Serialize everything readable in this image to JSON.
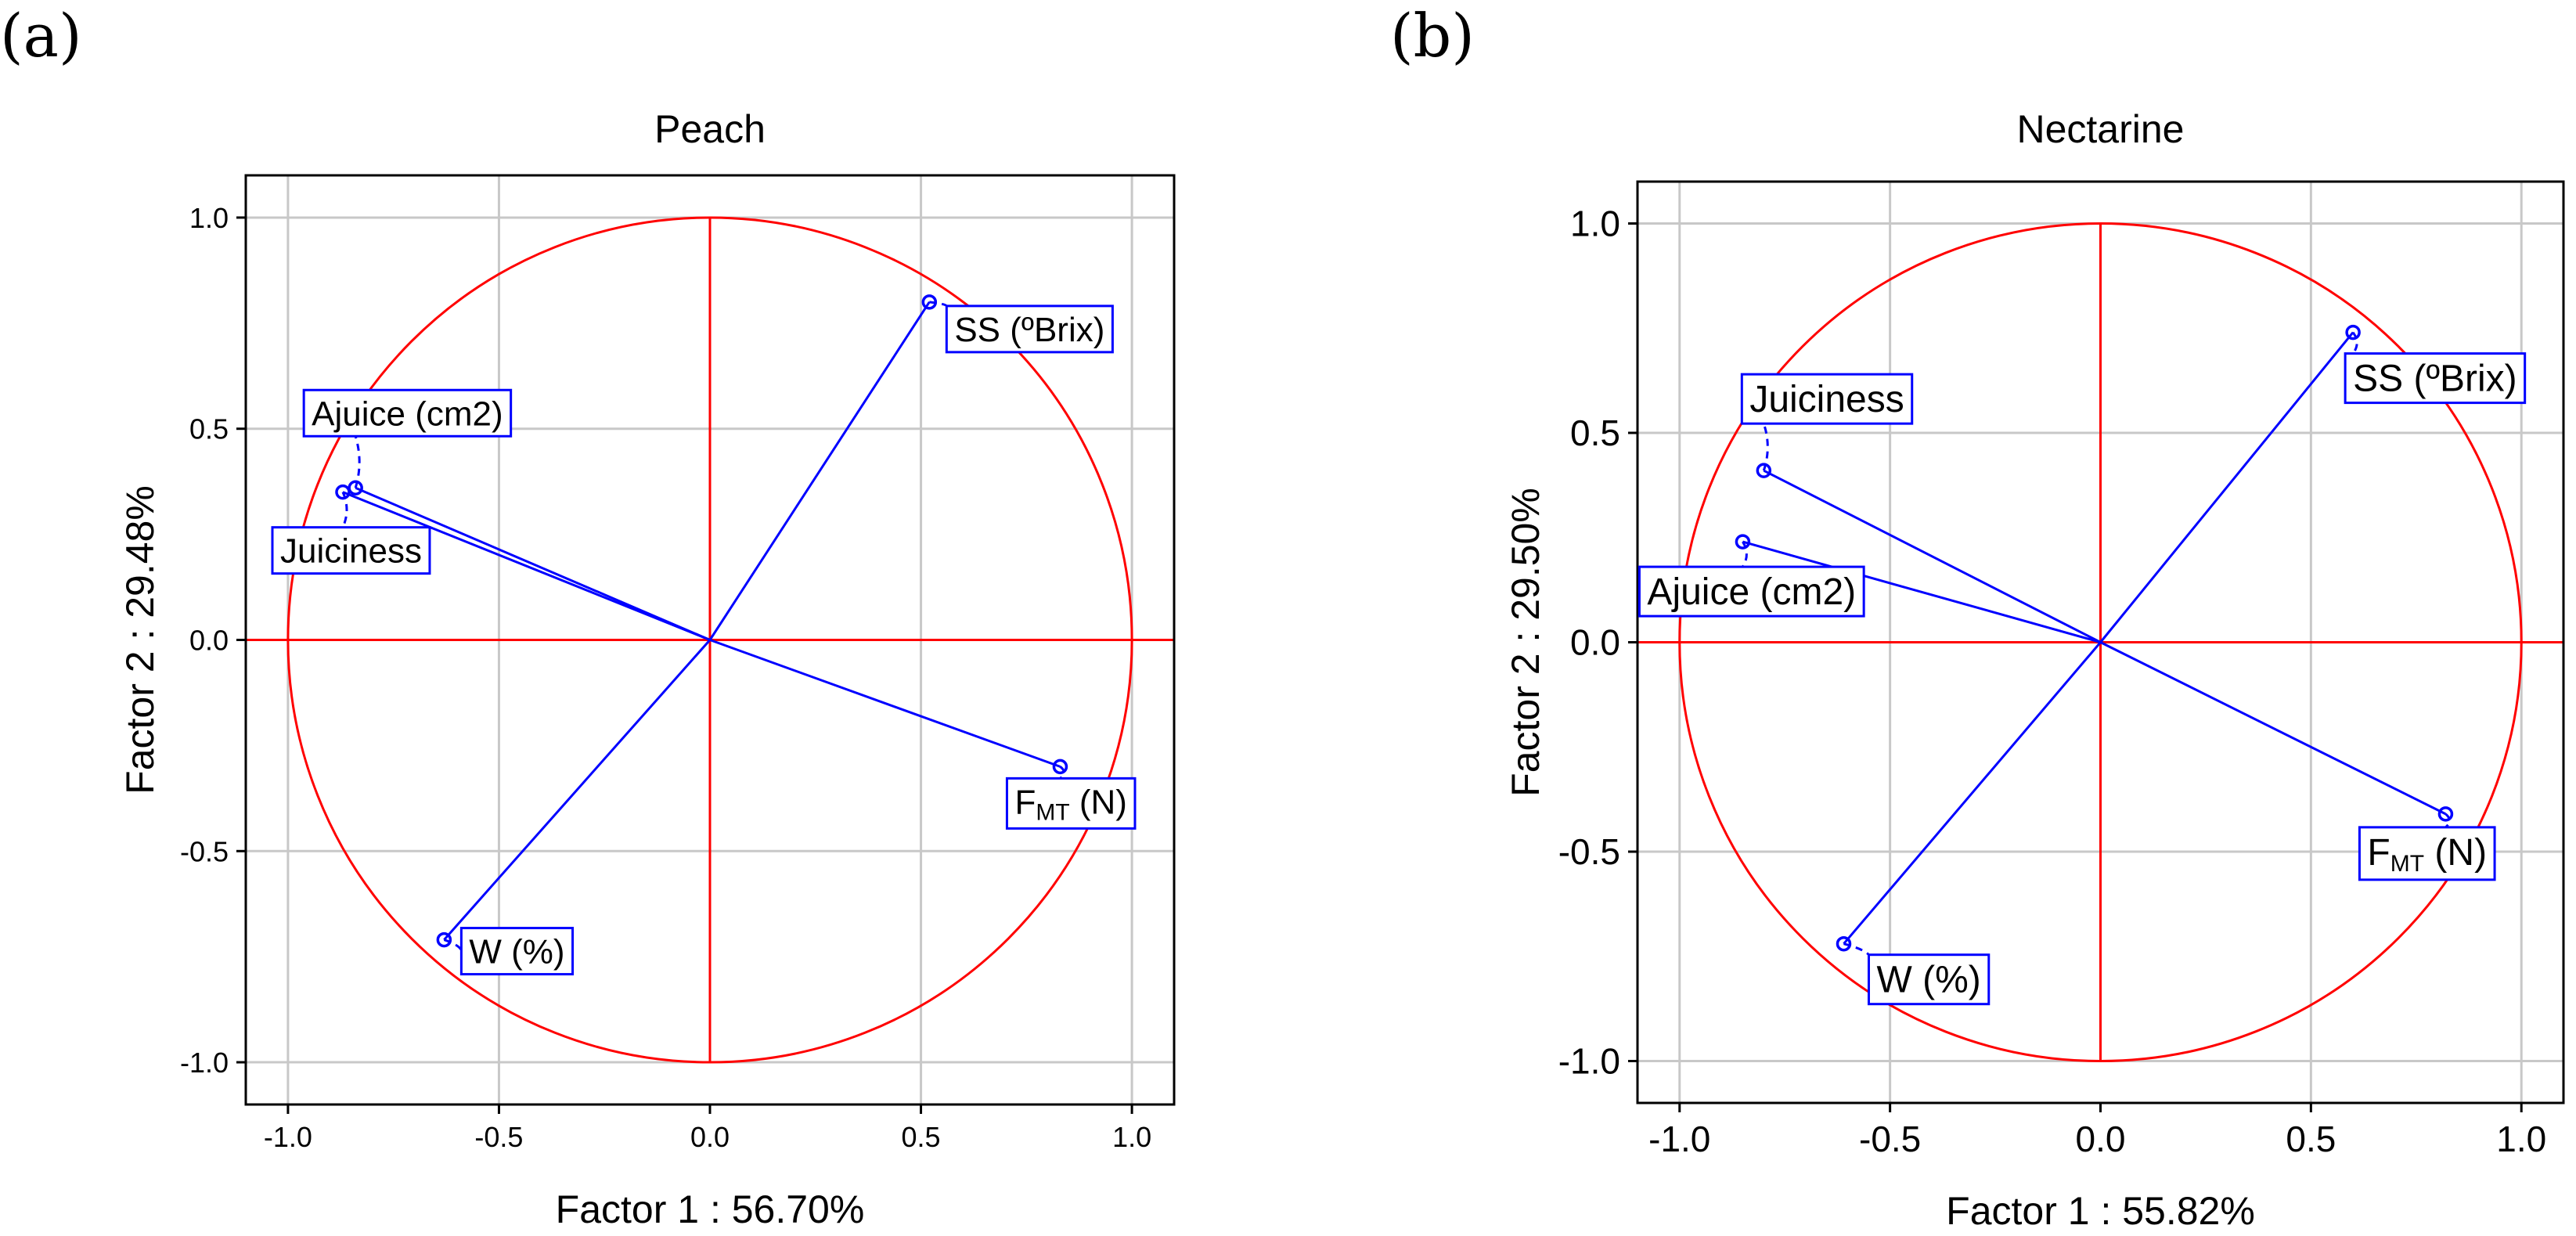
{
  "figure": {
    "panels": [
      "(a)",
      "(b)"
    ]
  },
  "chart_data": [
    {
      "type": "scatter",
      "panel": "(a)",
      "title": "Peach",
      "xlabel": "Factor 1 : 56.70%",
      "ylabel": "Factor 2 : 29.48%",
      "xlim": [
        -1.1,
        1.1
      ],
      "ylim": [
        -1.1,
        1.1
      ],
      "xticks": [
        -1.0,
        -0.5,
        0.0,
        0.5,
        1.0
      ],
      "yticks": [
        -1.0,
        -0.5,
        0.0,
        0.5,
        1.0
      ],
      "xtick_labels": [
        "-1.0",
        "-0.5",
        "0.0",
        "0.5",
        "1.0"
      ],
      "ytick_labels": [
        "-1.0",
        "-0.5",
        "0.0",
        "0.5",
        "1.0"
      ],
      "unit_circle": true,
      "grid": true,
      "variables": [
        {
          "name": "SS (ºBrix)",
          "x": 0.52,
          "y": 0.8
        },
        {
          "name": "Ajuice (cm2)",
          "x": -0.84,
          "y": 0.36
        },
        {
          "name": "Juiciness",
          "x": -0.87,
          "y": 0.35
        },
        {
          "name": "F",
          "subscript": "MT",
          "suffix": " (N)",
          "x": 0.83,
          "y": -0.3
        },
        {
          "name": "W (%)",
          "x": -0.63,
          "y": -0.71
        }
      ]
    },
    {
      "type": "scatter",
      "panel": "(b)",
      "title": "Nectarine",
      "xlabel": "Factor 1 : 55.82%",
      "ylabel": "Factor 2 : 29.50%",
      "xlim": [
        -1.1,
        1.1
      ],
      "ylim": [
        -1.1,
        1.1
      ],
      "xticks": [
        -1.0,
        -0.5,
        0.0,
        0.5,
        1.0
      ],
      "yticks": [
        -1.0,
        -0.5,
        0.0,
        0.5,
        1.0
      ],
      "xtick_labels": [
        "-1.0",
        "-0.5",
        "0.0",
        "0.5",
        "1.0"
      ],
      "ytick_labels": [
        "-1.0",
        "-0.5",
        "0.0",
        "0.5",
        "1.0"
      ],
      "unit_circle": true,
      "grid": true,
      "variables": [
        {
          "name": "SS (ºBrix)",
          "x": 0.6,
          "y": 0.74
        },
        {
          "name": "Juiciness",
          "x": -0.8,
          "y": 0.41
        },
        {
          "name": "Ajuice (cm2)",
          "x": -0.85,
          "y": 0.24
        },
        {
          "name": "F",
          "subscript": "MT",
          "suffix": " (N)",
          "x": 0.82,
          "y": -0.41
        },
        {
          "name": "W (%)",
          "x": -0.61,
          "y": -0.72
        }
      ]
    }
  ]
}
